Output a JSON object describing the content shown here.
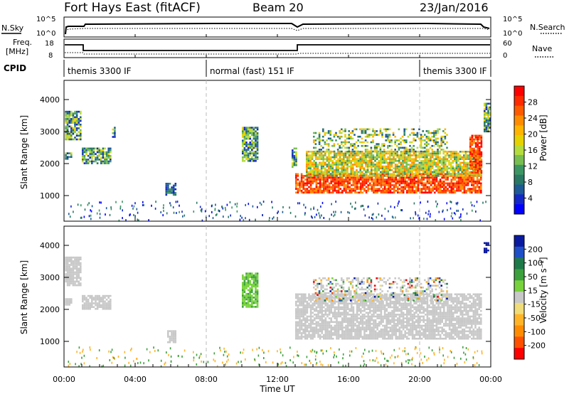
{
  "header": {
    "station": "Fort Hays East (fitACF)",
    "beam": "Beam 20",
    "date": "23/Jan/2016"
  },
  "noise_panel": {
    "left_label": "N.Sky",
    "right_label": "N.Search",
    "left_ticks": [
      "10^5",
      "10^0"
    ],
    "right_ticks": [
      "10^5",
      "10^0"
    ]
  },
  "freq_panel": {
    "left_label_line1": "Freq.",
    "left_label_line2": "[MHz]",
    "left_ticks": [
      "18",
      "8"
    ],
    "right_label": "Nave",
    "right_ticks": [
      "60",
      "0"
    ]
  },
  "cpid": {
    "label": "CPID",
    "segments": [
      {
        "start_h": 0,
        "end_h": 8,
        "name": "themis 3300 IF"
      },
      {
        "start_h": 8,
        "end_h": 20,
        "name": "normal (fast) 151 IF"
      },
      {
        "start_h": 20,
        "end_h": 24,
        "name": "themis 3300 IF"
      }
    ]
  },
  "axes": {
    "xlabel": "Time UT",
    "x_ticks": [
      "00:00",
      "04:00",
      "08:00",
      "12:00",
      "16:00",
      "20:00",
      "00:00"
    ],
    "ylabel": "Slant Range [km]",
    "y_ticks": [
      "4000",
      "3000",
      "2000",
      "1000"
    ]
  },
  "power_colorbar": {
    "label": "Power [dB]",
    "ticks": [
      "28",
      "24",
      "20",
      "16",
      "12",
      "8",
      "4"
    ],
    "colors": [
      "#ff0000",
      "#ff2a00",
      "#ff5a00",
      "#ff8c00",
      "#ffb400",
      "#e6d200",
      "#b4dc3c",
      "#78be50",
      "#3c9664",
      "#287864",
      "#1e5a96",
      "#1428c8",
      "#0000ff"
    ]
  },
  "velocity_colorbar": {
    "label": "Velocity [m s⁻¹]",
    "ticks": [
      "200",
      "100",
      "50",
      "15",
      "-15",
      "-50",
      "-100",
      "-200"
    ],
    "colors": [
      "#0a1aa0",
      "#1e4fc8",
      "#1f7a4a",
      "#3ca03c",
      "#78d23c",
      "#c8c8c8",
      "#f0dc78",
      "#ffb428",
      "#ff8c00",
      "#ff5000",
      "#ff0000"
    ]
  },
  "chart_data": {
    "type": "heatmap",
    "xlabel": "Time UT",
    "ylabel": "Slant Range [km]",
    "xlim": [
      0,
      24
    ],
    "ylim": [
      200,
      4600
    ],
    "vertical_markers_h": [
      8,
      20
    ],
    "power_panel": {
      "colorbar_label": "Power [dB]",
      "colorbar_ticks": [
        28,
        24,
        20,
        16,
        12,
        8,
        4
      ],
      "regions": [
        {
          "t0": 0.05,
          "t1": 0.9,
          "r0": 2750,
          "r1": 3650,
          "level": "mid"
        },
        {
          "t0": 0.05,
          "t1": 0.4,
          "r0": 2150,
          "r1": 2350,
          "level": "mid"
        },
        {
          "t0": 1.0,
          "t1": 2.6,
          "r0": 2000,
          "r1": 2500,
          "level": "mid"
        },
        {
          "t0": 2.7,
          "t1": 2.9,
          "r0": 2800,
          "r1": 3150,
          "level": "mid"
        },
        {
          "t0": 5.7,
          "t1": 6.3,
          "r0": 1000,
          "r1": 1400,
          "level": "low"
        },
        {
          "t0": 10.0,
          "t1": 10.9,
          "r0": 2100,
          "r1": 3150,
          "level": "mid"
        },
        {
          "t0": 12.8,
          "t1": 13.1,
          "r0": 1900,
          "r1": 2500,
          "level": "mid"
        },
        {
          "t0": 13.0,
          "t1": 23.5,
          "r0": 1100,
          "r1": 1700,
          "level": "high"
        },
        {
          "t0": 13.6,
          "t1": 23.4,
          "r0": 1600,
          "r1": 2400,
          "level": "upper"
        },
        {
          "t0": 14.0,
          "t1": 21.5,
          "r0": 2400,
          "r1": 3100,
          "level": "sparse"
        },
        {
          "t0": 22.8,
          "t1": 23.5,
          "r0": 1700,
          "r1": 2900,
          "level": "high"
        },
        {
          "t0": 23.6,
          "t1": 23.95,
          "r0": 3000,
          "r1": 3900,
          "level": "mid"
        }
      ]
    },
    "velocity_panel": {
      "colorbar_label": "Velocity [m s⁻¹]",
      "colorbar_ticks": [
        200,
        100,
        50,
        15,
        -15,
        -50,
        -100,
        -200
      ],
      "regions": [
        {
          "t0": 0.05,
          "t1": 0.9,
          "r0": 2750,
          "r1": 3650,
          "kind": "ground"
        },
        {
          "t0": 0.05,
          "t1": 0.4,
          "r0": 2150,
          "r1": 2350,
          "kind": "ground"
        },
        {
          "t0": 1.0,
          "t1": 2.6,
          "r0": 2000,
          "r1": 2450,
          "kind": "ground"
        },
        {
          "t0": 5.8,
          "t1": 6.3,
          "r0": 1000,
          "r1": 1350,
          "kind": "ground"
        },
        {
          "t0": 10.0,
          "t1": 10.9,
          "r0": 2100,
          "r1": 3150,
          "kind": "green"
        },
        {
          "t0": 13.0,
          "t1": 23.5,
          "r0": 1100,
          "r1": 2500,
          "kind": "ground"
        },
        {
          "t0": 14.0,
          "t1": 21.5,
          "r0": 2300,
          "r1": 3000,
          "kind": "mixed"
        },
        {
          "t0": 23.6,
          "t1": 23.9,
          "r0": 3800,
          "r1": 4100,
          "kind": "blue"
        }
      ]
    }
  }
}
